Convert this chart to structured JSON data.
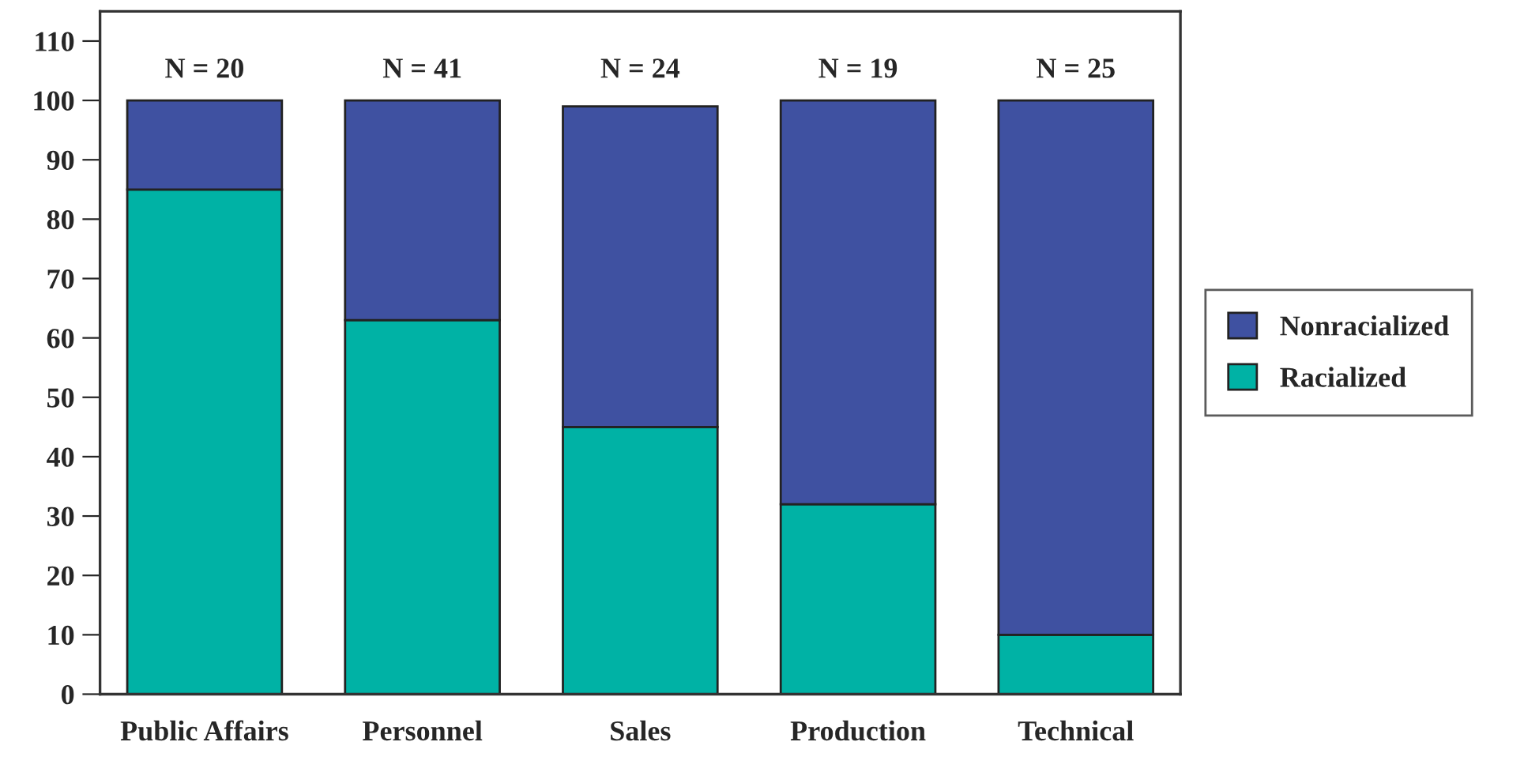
{
  "chart_data": {
    "type": "bar",
    "stacked": true,
    "categories": [
      "Public Affairs",
      "Personnel",
      "Sales",
      "Production",
      "Technical"
    ],
    "series": [
      {
        "name": "Racialized",
        "color": "#00b2a5",
        "values": [
          85,
          63,
          45,
          32,
          10
        ]
      },
      {
        "name": "Nonracialized",
        "color": "#3f51a1",
        "values": [
          15,
          37,
          54,
          68,
          90
        ]
      }
    ],
    "ylim": [
      0,
      115
    ],
    "yticks": [
      0,
      10,
      20,
      30,
      40,
      50,
      60,
      70,
      80,
      90,
      100,
      110
    ],
    "annotations": [
      "N = 20",
      "N = 41",
      "N = 24",
      "N = 19",
      "N = 25"
    ],
    "grid": false,
    "legend": "right"
  }
}
